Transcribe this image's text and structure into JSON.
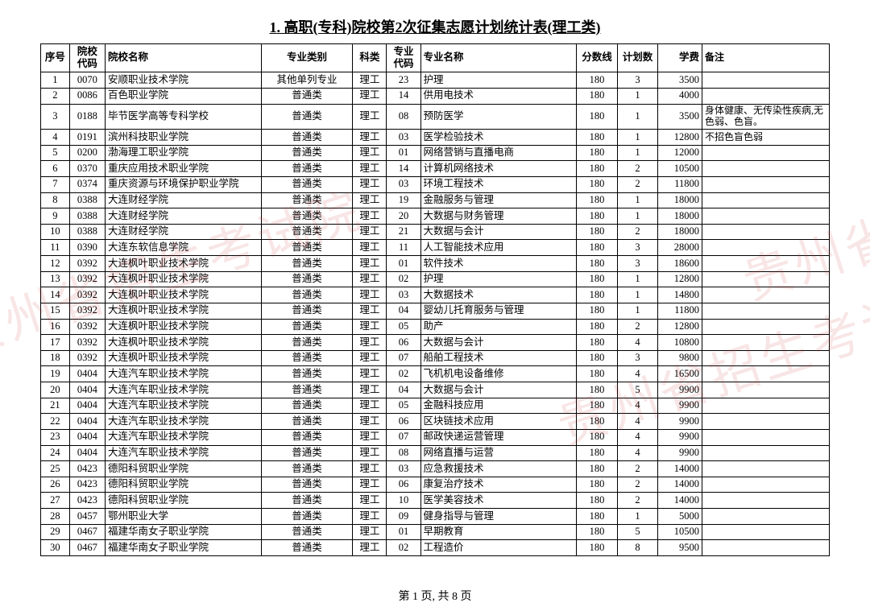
{
  "title": "1. 高职(专科)院校第2次征集志愿计划统计表(理工类)",
  "title_fontsize": "18px",
  "watermark_text": "贵州省招生考试院",
  "pager": "第 1 页, 共 8 页",
  "columns": [
    {
      "key": "seq",
      "label": "序号"
    },
    {
      "key": "code",
      "label": "院校\n代码"
    },
    {
      "key": "school",
      "label": "院校名称"
    },
    {
      "key": "cat",
      "label": "专业类别"
    },
    {
      "key": "sub",
      "label": "科类"
    },
    {
      "key": "mcode",
      "label": "专业\n代码"
    },
    {
      "key": "major",
      "label": "专业名称"
    },
    {
      "key": "score",
      "label": "分数线"
    },
    {
      "key": "plan",
      "label": "计划数"
    },
    {
      "key": "fee",
      "label": "学费"
    },
    {
      "key": "note",
      "label": "备注"
    }
  ],
  "rows": [
    {
      "seq": "1",
      "code": "0070",
      "school": "安顺职业技术学院",
      "cat": "其他单列专业",
      "sub": "理工",
      "mcode": "23",
      "major": "护理",
      "score": "180",
      "plan": "3",
      "fee": "3500",
      "note": ""
    },
    {
      "seq": "2",
      "code": "0086",
      "school": "百色职业学院",
      "cat": "普通类",
      "sub": "理工",
      "mcode": "14",
      "major": "供用电技术",
      "score": "180",
      "plan": "1",
      "fee": "4000",
      "note": ""
    },
    {
      "seq": "3",
      "code": "0188",
      "school": "毕节医学高等专科学校",
      "cat": "普通类",
      "sub": "理工",
      "mcode": "08",
      "major": "预防医学",
      "score": "180",
      "plan": "1",
      "fee": "3500",
      "note": "身体健康、无传染性疾病,无色弱、色盲。"
    },
    {
      "seq": "4",
      "code": "0191",
      "school": "滨州科技职业学院",
      "cat": "普通类",
      "sub": "理工",
      "mcode": "03",
      "major": "医学检验技术",
      "score": "180",
      "plan": "1",
      "fee": "12800",
      "note": "不招色盲色弱"
    },
    {
      "seq": "5",
      "code": "0200",
      "school": "渤海理工职业学院",
      "cat": "普通类",
      "sub": "理工",
      "mcode": "01",
      "major": "网络营销与直播电商",
      "score": "180",
      "plan": "1",
      "fee": "12000",
      "note": ""
    },
    {
      "seq": "6",
      "code": "0370",
      "school": "重庆应用技术职业学院",
      "cat": "普通类",
      "sub": "理工",
      "mcode": "14",
      "major": "计算机网络技术",
      "score": "180",
      "plan": "2",
      "fee": "10500",
      "note": ""
    },
    {
      "seq": "7",
      "code": "0374",
      "school": "重庆资源与环境保护职业学院",
      "cat": "普通类",
      "sub": "理工",
      "mcode": "03",
      "major": "环境工程技术",
      "score": "180",
      "plan": "2",
      "fee": "11800",
      "note": ""
    },
    {
      "seq": "8",
      "code": "0388",
      "school": "大连财经学院",
      "cat": "普通类",
      "sub": "理工",
      "mcode": "19",
      "major": "金融服务与管理",
      "score": "180",
      "plan": "1",
      "fee": "18000",
      "note": ""
    },
    {
      "seq": "9",
      "code": "0388",
      "school": "大连财经学院",
      "cat": "普通类",
      "sub": "理工",
      "mcode": "20",
      "major": "大数据与财务管理",
      "score": "180",
      "plan": "1",
      "fee": "18000",
      "note": ""
    },
    {
      "seq": "10",
      "code": "0388",
      "school": "大连财经学院",
      "cat": "普通类",
      "sub": "理工",
      "mcode": "21",
      "major": "大数据与会计",
      "score": "180",
      "plan": "2",
      "fee": "18000",
      "note": ""
    },
    {
      "seq": "11",
      "code": "0390",
      "school": "大连东软信息学院",
      "cat": "普通类",
      "sub": "理工",
      "mcode": "11",
      "major": "人工智能技术应用",
      "score": "180",
      "plan": "3",
      "fee": "28000",
      "note": ""
    },
    {
      "seq": "12",
      "code": "0392",
      "school": "大连枫叶职业技术学院",
      "cat": "普通类",
      "sub": "理工",
      "mcode": "01",
      "major": "软件技术",
      "score": "180",
      "plan": "3",
      "fee": "18600",
      "note": ""
    },
    {
      "seq": "13",
      "code": "0392",
      "school": "大连枫叶职业技术学院",
      "cat": "普通类",
      "sub": "理工",
      "mcode": "02",
      "major": "护理",
      "score": "180",
      "plan": "1",
      "fee": "12800",
      "note": ""
    },
    {
      "seq": "14",
      "code": "0392",
      "school": "大连枫叶职业技术学院",
      "cat": "普通类",
      "sub": "理工",
      "mcode": "03",
      "major": "大数据技术",
      "score": "180",
      "plan": "1",
      "fee": "14800",
      "note": ""
    },
    {
      "seq": "15",
      "code": "0392",
      "school": "大连枫叶职业技术学院",
      "cat": "普通类",
      "sub": "理工",
      "mcode": "04",
      "major": "婴幼儿托育服务与管理",
      "score": "180",
      "plan": "1",
      "fee": "11800",
      "note": ""
    },
    {
      "seq": "16",
      "code": "0392",
      "school": "大连枫叶职业技术学院",
      "cat": "普通类",
      "sub": "理工",
      "mcode": "05",
      "major": "助产",
      "score": "180",
      "plan": "2",
      "fee": "12800",
      "note": ""
    },
    {
      "seq": "17",
      "code": "0392",
      "school": "大连枫叶职业技术学院",
      "cat": "普通类",
      "sub": "理工",
      "mcode": "06",
      "major": "大数据与会计",
      "score": "180",
      "plan": "4",
      "fee": "10800",
      "note": ""
    },
    {
      "seq": "18",
      "code": "0392",
      "school": "大连枫叶职业技术学院",
      "cat": "普通类",
      "sub": "理工",
      "mcode": "07",
      "major": "船舶工程技术",
      "score": "180",
      "plan": "3",
      "fee": "9800",
      "note": ""
    },
    {
      "seq": "19",
      "code": "0404",
      "school": "大连汽车职业技术学院",
      "cat": "普通类",
      "sub": "理工",
      "mcode": "02",
      "major": "飞机机电设备维修",
      "score": "180",
      "plan": "4",
      "fee": "16500",
      "note": ""
    },
    {
      "seq": "20",
      "code": "0404",
      "school": "大连汽车职业技术学院",
      "cat": "普通类",
      "sub": "理工",
      "mcode": "04",
      "major": "大数据与会计",
      "score": "180",
      "plan": "5",
      "fee": "9900",
      "note": ""
    },
    {
      "seq": "21",
      "code": "0404",
      "school": "大连汽车职业技术学院",
      "cat": "普通类",
      "sub": "理工",
      "mcode": "05",
      "major": "金融科技应用",
      "score": "180",
      "plan": "4",
      "fee": "9900",
      "note": ""
    },
    {
      "seq": "22",
      "code": "0404",
      "school": "大连汽车职业技术学院",
      "cat": "普通类",
      "sub": "理工",
      "mcode": "06",
      "major": "区块链技术应用",
      "score": "180",
      "plan": "4",
      "fee": "9900",
      "note": ""
    },
    {
      "seq": "23",
      "code": "0404",
      "school": "大连汽车职业技术学院",
      "cat": "普通类",
      "sub": "理工",
      "mcode": "07",
      "major": "邮政快递运营管理",
      "score": "180",
      "plan": "4",
      "fee": "9900",
      "note": ""
    },
    {
      "seq": "24",
      "code": "0404",
      "school": "大连汽车职业技术学院",
      "cat": "普通类",
      "sub": "理工",
      "mcode": "08",
      "major": "网络直播与运营",
      "score": "180",
      "plan": "4",
      "fee": "9900",
      "note": ""
    },
    {
      "seq": "25",
      "code": "0423",
      "school": "德阳科贸职业学院",
      "cat": "普通类",
      "sub": "理工",
      "mcode": "03",
      "major": "应急救援技术",
      "score": "180",
      "plan": "2",
      "fee": "14000",
      "note": ""
    },
    {
      "seq": "26",
      "code": "0423",
      "school": "德阳科贸职业学院",
      "cat": "普通类",
      "sub": "理工",
      "mcode": "06",
      "major": "康复治疗技术",
      "score": "180",
      "plan": "2",
      "fee": "14000",
      "note": ""
    },
    {
      "seq": "27",
      "code": "0423",
      "school": "德阳科贸职业学院",
      "cat": "普通类",
      "sub": "理工",
      "mcode": "10",
      "major": "医学美容技术",
      "score": "180",
      "plan": "2",
      "fee": "14000",
      "note": ""
    },
    {
      "seq": "28",
      "code": "0457",
      "school": "鄂州职业大学",
      "cat": "普通类",
      "sub": "理工",
      "mcode": "09",
      "major": "健身指导与管理",
      "score": "180",
      "plan": "1",
      "fee": "5000",
      "note": ""
    },
    {
      "seq": "29",
      "code": "0467",
      "school": "福建华南女子职业学院",
      "cat": "普通类",
      "sub": "理工",
      "mcode": "01",
      "major": "早期教育",
      "score": "180",
      "plan": "5",
      "fee": "10500",
      "note": ""
    },
    {
      "seq": "30",
      "code": "0467",
      "school": "福建华南女子职业学院",
      "cat": "普通类",
      "sub": "理工",
      "mcode": "02",
      "major": "工程造价",
      "score": "180",
      "plan": "8",
      "fee": "9500",
      "note": ""
    }
  ]
}
